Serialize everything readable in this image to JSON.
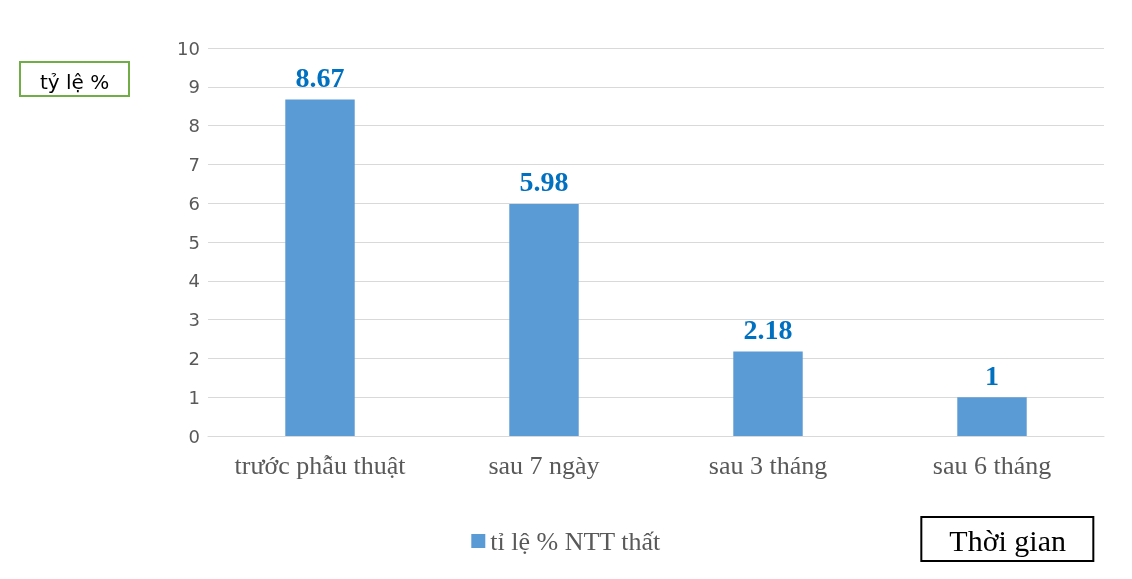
{
  "chart_data": {
    "type": "bar",
    "ylabel": "tỷ lệ %",
    "xlabel": "Thời gian",
    "categories": [
      "trước phẫu thuật",
      "sau 7 ngày",
      "sau 3 tháng",
      "sau 6 tháng"
    ],
    "series": [
      {
        "name": "tỉ lệ % NTT thất",
        "color": "#5b9bd5",
        "values": [
          8.67,
          5.98,
          2.18,
          1
        ]
      }
    ],
    "ylim": [
      0,
      10
    ],
    "yticks": [
      0,
      1,
      2,
      3,
      4,
      5,
      6,
      7,
      8,
      9,
      10
    ],
    "grid": "y",
    "legend": "bottom",
    "data_labels": true
  }
}
